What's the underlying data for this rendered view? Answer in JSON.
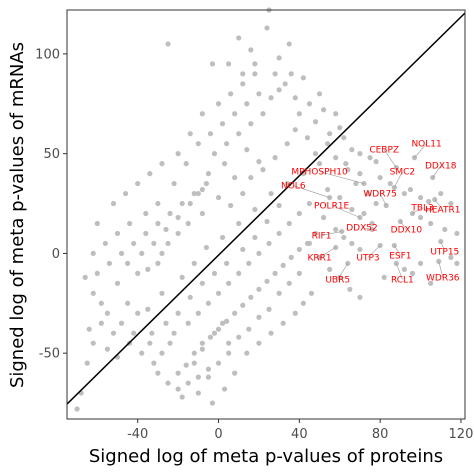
{
  "chart_data": {
    "type": "scatter",
    "title": "",
    "xlabel": "Signed log of meta p-values of proteins",
    "ylabel": "Signed log of meta p-values of mRNAs",
    "xlim": [
      -75,
      122
    ],
    "ylim": [
      -83,
      122
    ],
    "xticks": [
      -40,
      0,
      40,
      80,
      120
    ],
    "yticks": [
      -50,
      0,
      50,
      100
    ],
    "grid": false,
    "point_color": "#bebebe",
    "line_color": "#000000",
    "label_color": "#ff0000",
    "reference_line": {
      "x": [
        -75,
        122
      ],
      "y": [
        -75.5,
        120.5
      ]
    },
    "labeled_genes": [
      {
        "name": "NOL11",
        "label_x": 103,
        "label_y": 55,
        "x": 97,
        "y": 48
      },
      {
        "name": "CEBPZ",
        "label_x": 82,
        "label_y": 52,
        "x": 88,
        "y": 43
      },
      {
        "name": "DDX18",
        "label_x": 110,
        "label_y": 44,
        "x": 106,
        "y": 38
      },
      {
        "name": "MPHOSPH10",
        "label_x": 50,
        "label_y": 41,
        "x": 72,
        "y": 35
      },
      {
        "name": "SMC2",
        "label_x": 91,
        "label_y": 41,
        "x": 87,
        "y": 33
      },
      {
        "name": "NOL6",
        "label_x": 37,
        "label_y": 34,
        "x": 55,
        "y": 28
      },
      {
        "name": "WDR75",
        "label_x": 80,
        "label_y": 30,
        "x": 83,
        "y": 24
      },
      {
        "name": "TBL3",
        "label_x": 101,
        "label_y": 23,
        "x": 96,
        "y": 20
      },
      {
        "name": "HEATR1",
        "label_x": 111,
        "label_y": 22,
        "x": 107,
        "y": 27
      },
      {
        "name": "POLR1E",
        "label_x": 56,
        "label_y": 24,
        "x": 70,
        "y": 18
      },
      {
        "name": "DDX10",
        "label_x": 93,
        "label_y": 12,
        "x": 90,
        "y": 16
      },
      {
        "name": "DDX52",
        "label_x": 71,
        "label_y": 13,
        "x": 76,
        "y": 12
      },
      {
        "name": "RIF1",
        "label_x": 51,
        "label_y": 9,
        "x": 61,
        "y": 11
      },
      {
        "name": "UTP15",
        "label_x": 112,
        "label_y": 1,
        "x": 110,
        "y": 6
      },
      {
        "name": "ESF1",
        "label_x": 90,
        "label_y": -1,
        "x": 87,
        "y": 4
      },
      {
        "name": "UTP3",
        "label_x": 74,
        "label_y": -2,
        "x": 80,
        "y": 4
      },
      {
        "name": "KRR1",
        "label_x": 50,
        "label_y": -2,
        "x": 58,
        "y": 3
      },
      {
        "name": "WDR36",
        "label_x": 111,
        "label_y": -12,
        "x": 109,
        "y": -4
      },
      {
        "name": "RCL1",
        "label_x": 91,
        "label_y": -13,
        "x": 88,
        "y": -5
      },
      {
        "name": "UBR5",
        "label_x": 59,
        "label_y": -13,
        "x": 64,
        "y": -5
      }
    ],
    "points": [
      [
        24,
        133
      ],
      [
        25,
        122
      ],
      [
        -25,
        105
      ],
      [
        10,
        108
      ],
      [
        -3,
        95
      ],
      [
        5,
        95
      ],
      [
        24,
        113
      ],
      [
        35,
        105
      ],
      [
        16,
        102
      ],
      [
        30,
        98
      ],
      [
        18,
        90
      ],
      [
        28,
        90
      ],
      [
        33,
        85
      ],
      [
        12,
        85
      ],
      [
        42,
        88
      ],
      [
        38,
        78
      ],
      [
        45,
        75
      ],
      [
        50,
        80
      ],
      [
        52,
        72
      ],
      [
        58,
        70
      ],
      [
        48,
        66
      ],
      [
        40,
        70
      ],
      [
        60,
        63
      ],
      [
        55,
        60
      ],
      [
        62,
        58
      ],
      [
        66,
        52
      ],
      [
        70,
        50
      ],
      [
        75,
        48
      ],
      [
        78,
        46
      ],
      [
        63,
        45
      ],
      [
        70,
        40
      ],
      [
        80,
        38
      ],
      [
        85,
        35
      ],
      [
        92,
        30
      ],
      [
        95,
        32
      ],
      [
        100,
        28
      ],
      [
        104,
        26
      ],
      [
        110,
        30
      ],
      [
        115,
        25
      ],
      [
        100,
        18
      ],
      [
        105,
        15
      ],
      [
        112,
        12
      ],
      [
        118,
        10
      ],
      [
        115,
        -2
      ],
      [
        100,
        -5
      ],
      [
        96,
        -10
      ],
      [
        105,
        -15
      ],
      [
        82,
        -12
      ],
      [
        92,
        -8
      ],
      [
        118,
        -5
      ],
      [
        -5,
        40
      ],
      [
        3,
        45
      ],
      [
        8,
        38
      ],
      [
        14,
        52
      ],
      [
        20,
        46
      ],
      [
        -10,
        30
      ],
      [
        -8,
        20
      ],
      [
        -15,
        15
      ],
      [
        -20,
        10
      ],
      [
        -25,
        5
      ],
      [
        -28,
        0
      ],
      [
        -30,
        -5
      ],
      [
        -35,
        -8
      ],
      [
        -40,
        -10
      ],
      [
        -50,
        -15
      ],
      [
        -45,
        -25
      ],
      [
        -58,
        -25
      ],
      [
        -62,
        -20
      ],
      [
        -55,
        -30
      ],
      [
        -48,
        -35
      ],
      [
        -42,
        -40
      ],
      [
        -38,
        -50
      ],
      [
        -32,
        -55
      ],
      [
        -30,
        -60
      ],
      [
        -25,
        -65
      ],
      [
        -20,
        -68
      ],
      [
        -18,
        -72
      ],
      [
        -10,
        -70
      ],
      [
        -5,
        -62
      ],
      [
        -12,
        -55
      ],
      [
        -8,
        -48
      ],
      [
        -2,
        -40
      ],
      [
        2,
        -35
      ],
      [
        5,
        -45
      ],
      [
        -68,
        -70
      ],
      [
        -62,
        -45
      ],
      [
        -55,
        -48
      ],
      [
        -50,
        -52
      ],
      [
        -70,
        -78
      ],
      [
        -65,
        -55
      ],
      [
        -22,
        -40
      ],
      [
        -15,
        -35
      ],
      [
        -10,
        -30
      ],
      [
        -5,
        -25
      ],
      [
        0,
        -20
      ],
      [
        5,
        -15
      ],
      [
        10,
        -10
      ],
      [
        15,
        -5
      ],
      [
        20,
        0
      ],
      [
        25,
        5
      ],
      [
        30,
        10
      ],
      [
        35,
        15
      ],
      [
        40,
        20
      ],
      [
        45,
        25
      ],
      [
        -35,
        -28
      ],
      [
        -28,
        -20
      ],
      [
        -18,
        -12
      ],
      [
        -12,
        -5
      ],
      [
        -6,
        3
      ],
      [
        2,
        8
      ],
      [
        10,
        15
      ],
      [
        18,
        22
      ],
      [
        26,
        30
      ],
      [
        34,
        35
      ],
      [
        42,
        40
      ],
      [
        50,
        45
      ],
      [
        -40,
        -30
      ],
      [
        -33,
        -40
      ],
      [
        -26,
        -35
      ],
      [
        -20,
        -30
      ],
      [
        -14,
        -22
      ],
      [
        -8,
        -15
      ],
      [
        -2,
        -10
      ],
      [
        4,
        -5
      ],
      [
        12,
        2
      ],
      [
        18,
        8
      ],
      [
        24,
        16
      ],
      [
        30,
        24
      ],
      [
        -45,
        -5
      ],
      [
        -38,
        0
      ],
      [
        -32,
        5
      ],
      [
        -26,
        12
      ],
      [
        -20,
        18
      ],
      [
        -14,
        25
      ],
      [
        -8,
        32
      ],
      [
        0,
        28
      ],
      [
        6,
        24
      ],
      [
        12,
        30
      ],
      [
        16,
        38
      ],
      [
        22,
        42
      ],
      [
        28,
        48
      ],
      [
        34,
        55
      ],
      [
        38,
        62
      ],
      [
        44,
        58
      ],
      [
        48,
        50
      ],
      [
        54,
        55
      ],
      [
        58,
        48
      ],
      [
        64,
        42
      ],
      [
        68,
        35
      ],
      [
        74,
        30
      ],
      [
        78,
        25
      ],
      [
        54,
        32
      ],
      [
        60,
        28
      ],
      [
        66,
        22
      ],
      [
        72,
        20
      ],
      [
        76,
        15
      ],
      [
        52,
        18
      ],
      [
        58,
        12
      ],
      [
        62,
        8
      ],
      [
        66,
        5
      ],
      [
        70,
        2
      ],
      [
        48,
        10
      ],
      [
        44,
        5
      ],
      [
        40,
        2
      ],
      [
        36,
        -2
      ],
      [
        32,
        -6
      ],
      [
        28,
        -10
      ],
      [
        24,
        -14
      ],
      [
        20,
        -18
      ],
      [
        16,
        -22
      ],
      [
        12,
        -26
      ],
      [
        8,
        -30
      ],
      [
        4,
        -34
      ],
      [
        0,
        -38
      ],
      [
        -4,
        -42
      ],
      [
        -8,
        -45
      ],
      [
        -12,
        -50
      ],
      [
        -16,
        -56
      ],
      [
        -20,
        -60
      ],
      [
        -24,
        -45
      ],
      [
        -28,
        -50
      ],
      [
        -34,
        -45
      ],
      [
        -44,
        -45
      ],
      [
        -52,
        -40
      ],
      [
        -58,
        -35
      ],
      [
        -64,
        -38
      ],
      [
        -66,
        -12
      ],
      [
        -60,
        -10
      ],
      [
        -54,
        -5
      ],
      [
        -48,
        0
      ],
      [
        -42,
        5
      ],
      [
        -36,
        10
      ],
      [
        -30,
        15
      ],
      [
        -24,
        20
      ],
      [
        -18,
        25
      ],
      [
        -12,
        30
      ],
      [
        -6,
        35
      ],
      [
        -2,
        50
      ],
      [
        4,
        55
      ],
      [
        10,
        60
      ],
      [
        16,
        65
      ],
      [
        22,
        70
      ],
      [
        26,
        78
      ],
      [
        30,
        82
      ],
      [
        36,
        90
      ],
      [
        20,
        80
      ],
      [
        14,
        75
      ],
      [
        8,
        70
      ],
      [
        2,
        65
      ],
      [
        -4,
        60
      ],
      [
        -10,
        55
      ],
      [
        -16,
        45
      ],
      [
        -22,
        35
      ],
      [
        -30,
        25
      ],
      [
        -36,
        20
      ],
      [
        -44,
        15
      ],
      [
        -50,
        10
      ],
      [
        -56,
        5
      ],
      [
        -62,
        0
      ],
      [
        -60,
        15
      ],
      [
        -52,
        25
      ],
      [
        -46,
        30
      ],
      [
        -40,
        35
      ],
      [
        -34,
        40
      ],
      [
        -28,
        45
      ],
      [
        -20,
        50
      ],
      [
        -14,
        60
      ],
      [
        -8,
        70
      ],
      [
        0,
        75
      ],
      [
        6,
        80
      ],
      [
        12,
        90
      ],
      [
        18,
        95
      ],
      [
        45,
        5
      ],
      [
        50,
        -2
      ],
      [
        55,
        -8
      ],
      [
        60,
        -12
      ],
      [
        65,
        -18
      ],
      [
        70,
        -22
      ],
      [
        40,
        -10
      ],
      [
        35,
        -15
      ],
      [
        30,
        -20
      ],
      [
        25,
        -28
      ],
      [
        20,
        -32
      ],
      [
        15,
        -38
      ],
      [
        10,
        -42
      ],
      [
        5,
        -50
      ],
      [
        0,
        -55
      ],
      [
        -5,
        -58
      ],
      [
        -10,
        -62
      ],
      [
        -15,
        -65
      ],
      [
        -3,
        -75
      ],
      [
        3,
        -68
      ],
      [
        8,
        -60
      ],
      [
        14,
        -50
      ],
      [
        20,
        -45
      ],
      [
        26,
        -40
      ],
      [
        32,
        -35
      ],
      [
        38,
        -30
      ],
      [
        42,
        -25
      ],
      [
        46,
        -20
      ]
    ]
  }
}
